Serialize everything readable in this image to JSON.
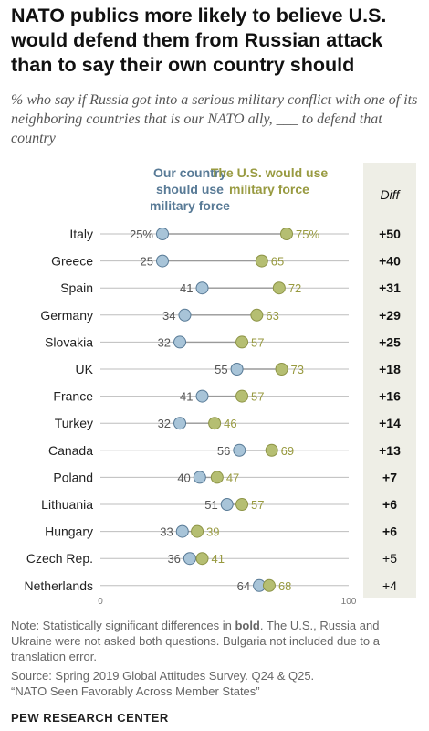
{
  "title": "NATO publics more likely to believe U.S. would defend them from Russian attack than to say their own country should",
  "subtitle": "% who say if Russia got into a serious military conflict with one of its neighboring countries that is our NATO ally, ___ to defend that country",
  "legend": {
    "own_country": "Our country should use military force",
    "us": "The U.S. would use military force",
    "diff": "Diff"
  },
  "note": {
    "prefix": "Note: Statistically significant differences in ",
    "bold_word": "bold",
    "suffix": ". The U.S., Russia and Ukraine were not asked both questions. Bulgaria not included due to a translation error.",
    "source": "Source: Spring 2019 Global Attitudes Survey. Q24 & Q25.",
    "report": "“NATO Seen Favorably Across Member States”",
    "org": "PEW RESEARCH CENTER"
  },
  "colors": {
    "own_country": "#a8c4d8",
    "own_country_stroke": "#587a96",
    "us": "#b5be72",
    "us_stroke": "#8d9446",
    "own_label": "#587a96",
    "us_label": "#989a40",
    "diff_bg": "#eeeee6"
  },
  "chart_data": {
    "type": "dot",
    "categories": [
      "Italy",
      "Greece",
      "Spain",
      "Germany",
      "Slovakia",
      "UK",
      "France",
      "Turkey",
      "Canada",
      "Poland",
      "Lithuania",
      "Hungary",
      "Czech Rep.",
      "Netherlands"
    ],
    "series": [
      {
        "name": "Our country should use military force",
        "values": [
          25,
          25,
          41,
          34,
          32,
          55,
          41,
          32,
          56,
          40,
          51,
          33,
          36,
          64
        ],
        "labels": [
          "25%",
          "25",
          "41",
          "34",
          "32",
          "55",
          "41",
          "32",
          "56",
          "40",
          "51",
          "33",
          "36",
          "64"
        ]
      },
      {
        "name": "The U.S. would use military force",
        "values": [
          75,
          65,
          72,
          63,
          57,
          73,
          57,
          46,
          69,
          47,
          57,
          39,
          41,
          68
        ],
        "labels": [
          "75%",
          "65",
          "72",
          "63",
          "57",
          "73",
          "57",
          "46",
          "69",
          "47",
          "57",
          "39",
          "41",
          "68"
        ]
      }
    ],
    "diff": [
      "+50",
      "+40",
      "+31",
      "+29",
      "+25",
      "+18",
      "+16",
      "+14",
      "+13",
      "+7",
      "+6",
      "+6",
      "+5",
      "+4"
    ],
    "diff_significant": [
      true,
      true,
      true,
      true,
      true,
      true,
      true,
      true,
      true,
      true,
      true,
      true,
      false,
      false
    ],
    "xlim": [
      0,
      100
    ],
    "xticks": [
      "0",
      "100"
    ]
  }
}
